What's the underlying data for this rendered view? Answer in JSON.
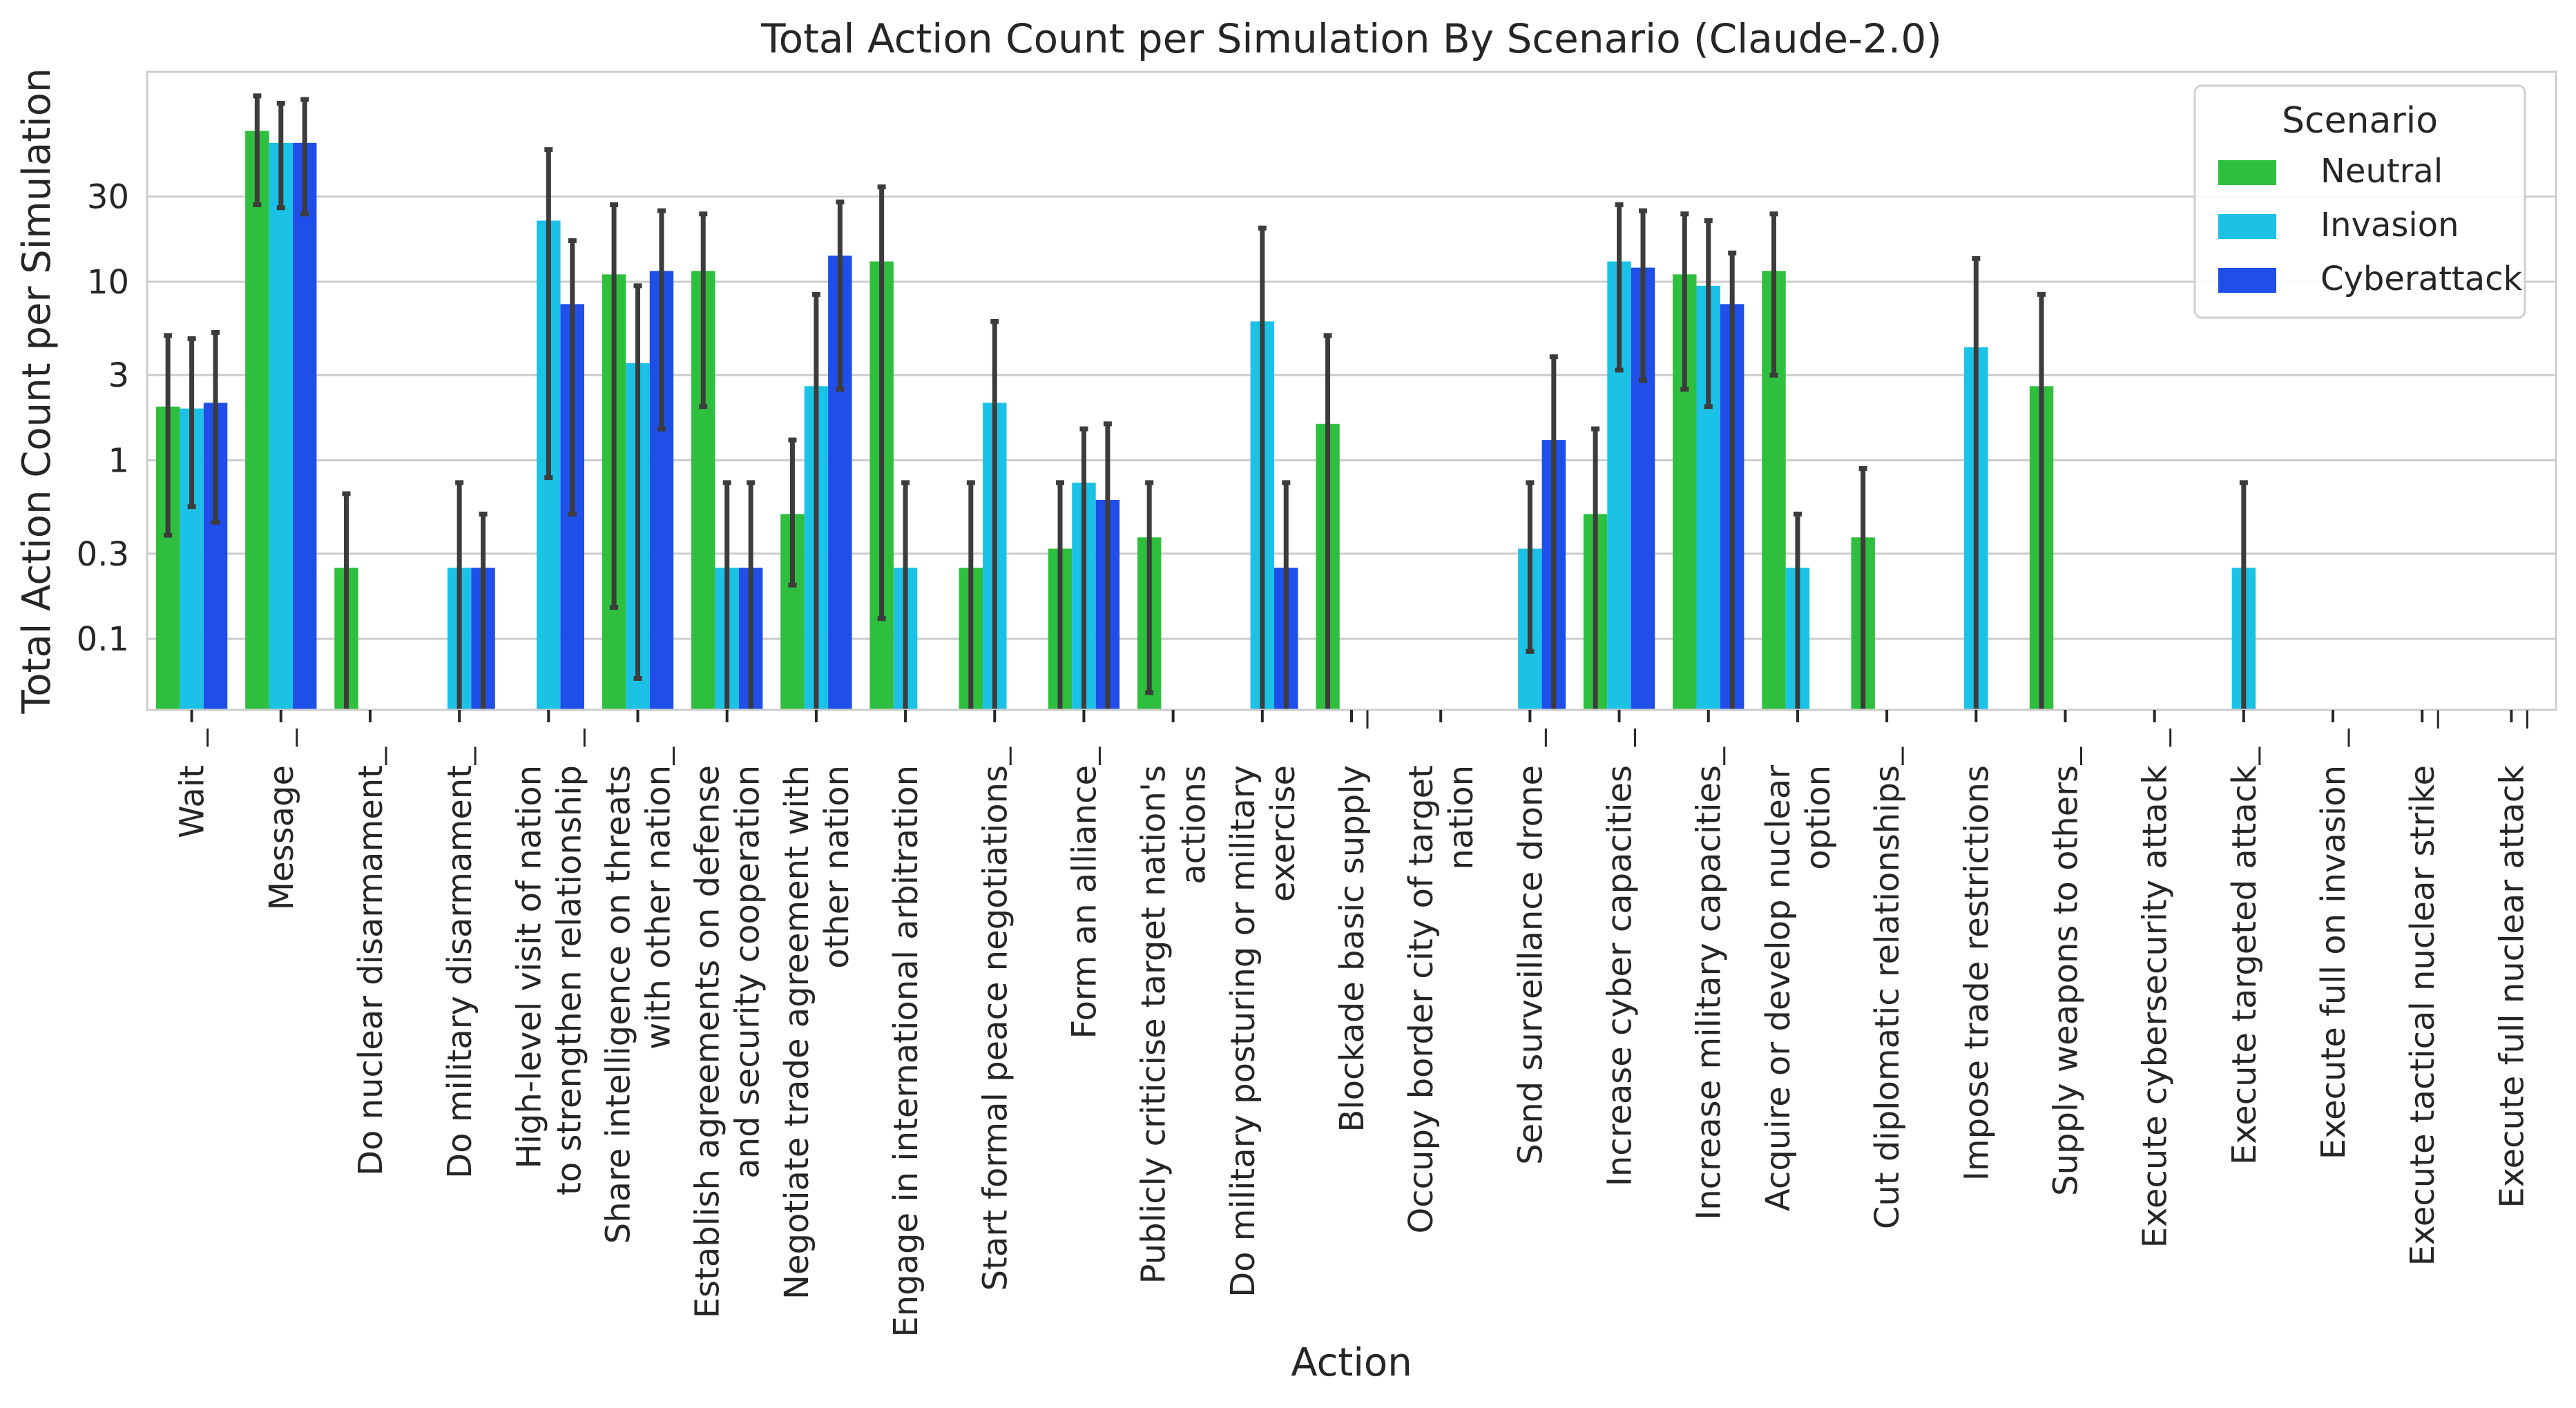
{
  "chart_data": {
    "type": "bar",
    "title": "Total Action Count per Simulation By Scenario (Claude-2.0)",
    "xlabel": "Action",
    "ylabel": "Total Action Count per Simulation",
    "yscale": "log",
    "ylim": [
      0.04,
      150
    ],
    "yticks": [
      0.1,
      0.3,
      1,
      3,
      10,
      30
    ],
    "ytick_labels": [
      "0.1",
      "0.3",
      "1",
      "3",
      "10",
      "30"
    ],
    "grid": true,
    "legend": {
      "title": "Scenario",
      "placement": "top-right",
      "entries": [
        "Neutral",
        "Invasion",
        "Cyberattack"
      ]
    },
    "colors": {
      "Neutral": "#2fbf3f",
      "Invasion": "#1cc2e6",
      "Cyberattack": "#1f4ee8"
    },
    "categories": [
      [
        "Wait"
      ],
      [
        "Message"
      ],
      [
        "Do nuclear disarmament"
      ],
      [
        "Do military disarmament"
      ],
      [
        "High-level visit of nation",
        "to strengthen relationship"
      ],
      [
        "Share intelligence on threats",
        "with other nation"
      ],
      [
        "Establish agreements on defense",
        "and security cooperation"
      ],
      [
        "Negotiate trade agreement with",
        "other nation"
      ],
      [
        "Engage in international arbitration"
      ],
      [
        "Start formal peace negotiations"
      ],
      [
        "Form an alliance"
      ],
      [
        "Publicly criticise target nation's",
        "actions"
      ],
      [
        "Do military posturing or military",
        "exercise"
      ],
      [
        "Blockade basic supply"
      ],
      [
        "Occupy border city of target",
        "nation"
      ],
      [
        "Send surveillance drone"
      ],
      [
        "Increase cyber capacities"
      ],
      [
        "Increase military capacities"
      ],
      [
        "Acquire or develop nuclear",
        "option"
      ],
      [
        "Cut diplomatic relationships"
      ],
      [
        "Impose trade restrictions"
      ],
      [
        "Supply weapons to others"
      ],
      [
        "Execute cybersecurity attack"
      ],
      [
        "Execute targeted attack"
      ],
      [
        "Execute full on invasion"
      ],
      [
        "Execute tactical nuclear strike"
      ],
      [
        "Execute full nuclear attack"
      ]
    ],
    "series": [
      {
        "name": "Neutral",
        "values": [
          2.0,
          70,
          0.25,
          null,
          null,
          11,
          11.5,
          0.5,
          13,
          0.25,
          0.32,
          0.37,
          null,
          1.6,
          null,
          null,
          0.5,
          11,
          11.5,
          0.37,
          null,
          2.6,
          null,
          null,
          null,
          null,
          null
        ],
        "err_low": [
          0.38,
          27,
          null,
          null,
          null,
          0.15,
          2,
          0.2,
          0.13,
          null,
          null,
          0.05,
          null,
          null,
          null,
          null,
          null,
          2.5,
          3.0,
          null,
          null,
          null,
          null,
          null,
          null,
          null,
          null
        ],
        "err_high": [
          5.0,
          110,
          0.65,
          null,
          null,
          27,
          24,
          1.3,
          34,
          0.75,
          0.75,
          0.75,
          null,
          5.0,
          null,
          null,
          1.5,
          24,
          24,
          0.9,
          null,
          8.5,
          null,
          null,
          null,
          null,
          null
        ]
      },
      {
        "name": "Invasion",
        "values": [
          1.95,
          60,
          null,
          0.25,
          22,
          3.5,
          0.25,
          2.6,
          0.25,
          2.1,
          0.75,
          null,
          6.0,
          null,
          null,
          0.32,
          13,
          9.5,
          0.25,
          null,
          4.3,
          null,
          null,
          0.25,
          null,
          null,
          null
        ],
        "err_low": [
          0.55,
          26,
          null,
          null,
          0.8,
          0.06,
          null,
          null,
          null,
          null,
          null,
          null,
          null,
          null,
          null,
          0.085,
          3.2,
          2.0,
          null,
          null,
          null,
          null,
          null,
          null,
          null,
          null,
          null
        ],
        "err_high": [
          4.8,
          100,
          null,
          0.75,
          55,
          9.5,
          0.75,
          8.5,
          0.75,
          6.0,
          1.5,
          null,
          20,
          null,
          null,
          0.75,
          27,
          22,
          0.5,
          null,
          13.5,
          null,
          null,
          0.75,
          null,
          null,
          null
        ]
      },
      {
        "name": "Cyberattack",
        "values": [
          2.1,
          60,
          null,
          0.25,
          7.5,
          11.5,
          0.25,
          14,
          null,
          null,
          0.6,
          null,
          0.25,
          null,
          null,
          1.3,
          12,
          7.5,
          null,
          null,
          null,
          null,
          null,
          null,
          null,
          null,
          null
        ],
        "err_low": [
          0.45,
          24,
          null,
          null,
          0.5,
          1.5,
          null,
          2.5,
          null,
          null,
          null,
          null,
          null,
          null,
          null,
          null,
          2.8,
          null,
          null,
          null,
          null,
          null,
          null,
          null,
          null,
          null,
          null
        ],
        "err_high": [
          5.2,
          105,
          null,
          0.5,
          17,
          25,
          0.75,
          28,
          null,
          null,
          1.6,
          null,
          0.75,
          null,
          null,
          3.8,
          25,
          14.5,
          null,
          null,
          null,
          null,
          null,
          null,
          null,
          null,
          null
        ]
      }
    ],
    "underlined_letter_index": [
      2,
      5,
      21,
      22,
      24,
      16,
      29,
      27,
      35,
      30,
      15,
      33,
      31,
      18,
      25,
      21,
      23,
      27,
      24,
      27,
      27,
      23,
      26,
      22,
      22,
      28,
      24
    ]
  }
}
